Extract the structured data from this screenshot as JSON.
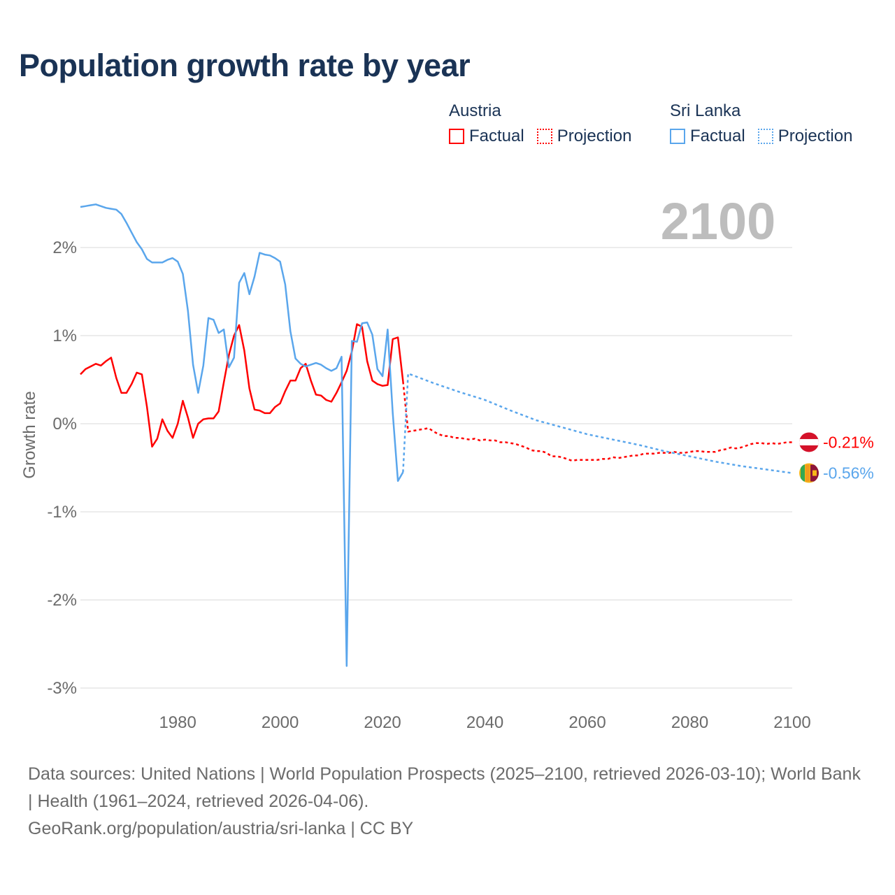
{
  "title": "Population growth rate by year",
  "legend": {
    "groups": [
      {
        "name": "Austria",
        "color": "#ff0000",
        "items": [
          "Factual",
          "Projection"
        ]
      },
      {
        "name": "Sri Lanka",
        "color": "#5aa6ec",
        "items": [
          "Factual",
          "Projection"
        ]
      }
    ]
  },
  "year_label": "2100",
  "footer": {
    "sources": "Data sources: United Nations | World Population Prospects (2025–2100, retrieved 2026-03-10); World Bank | Health (1961–2024, retrieved 2026-04-06).",
    "credit": "GeoRank.org/population/austria/sri-lanka | CC BY"
  },
  "chart_data": {
    "type": "line",
    "title": "Population growth rate by year",
    "ylabel": "Growth rate",
    "xlabel": "",
    "xlim": [
      1961,
      2100
    ],
    "ylim": [
      -3.1,
      2.6
    ],
    "x_ticks": [
      1980,
      2000,
      2020,
      2040,
      2060,
      2080,
      2100
    ],
    "x_tick_labels": [
      "1980",
      "2000",
      "2020",
      "2040",
      "2060",
      "2080",
      "2100"
    ],
    "y_ticks": [
      2,
      1,
      0,
      -1,
      -2,
      -3
    ],
    "y_tick_labels": [
      "2%",
      "1%",
      "0%",
      "-1%",
      "-2%",
      "-3%"
    ],
    "grid": true,
    "series": [
      {
        "name": "Austria Factual",
        "country": "Austria",
        "style": "solid",
        "color": "#ff0000",
        "x_start": 1961,
        "values": [
          0.56,
          0.62,
          0.65,
          0.68,
          0.66,
          0.71,
          0.75,
          0.52,
          0.35,
          0.35,
          0.45,
          0.58,
          0.56,
          0.19,
          -0.26,
          -0.17,
          0.05,
          -0.08,
          -0.16,
          0.0,
          0.26,
          0.07,
          -0.16,
          0.0,
          0.05,
          0.06,
          0.06,
          0.14,
          0.47,
          0.78,
          1.0,
          1.12,
          0.83,
          0.4,
          0.16,
          0.15,
          0.12,
          0.12,
          0.19,
          0.23,
          0.37,
          0.49,
          0.49,
          0.63,
          0.68,
          0.49,
          0.33,
          0.32,
          0.27,
          0.25,
          0.35,
          0.47,
          0.6,
          0.82,
          1.13,
          1.1,
          0.71,
          0.49,
          0.45,
          0.43,
          0.44,
          0.96,
          0.98,
          0.48
        ]
      },
      {
        "name": "Austria Projection",
        "country": "Austria",
        "style": "dotted",
        "color": "#ff0000",
        "x_start": 2024,
        "values": [
          0.48,
          -0.09,
          -0.08,
          -0.07,
          -0.06,
          -0.05,
          -0.09,
          -0.12,
          -0.14,
          -0.14,
          -0.16,
          -0.16,
          -0.17,
          -0.18,
          -0.17,
          -0.19,
          -0.18,
          -0.19,
          -0.19,
          -0.21,
          -0.21,
          -0.22,
          -0.23,
          -0.25,
          -0.27,
          -0.3,
          -0.31,
          -0.31,
          -0.33,
          -0.37,
          -0.37,
          -0.38,
          -0.4,
          -0.42,
          -0.41,
          -0.41,
          -0.41,
          -0.41,
          -0.41,
          -0.4,
          -0.4,
          -0.38,
          -0.39,
          -0.38,
          -0.37,
          -0.36,
          -0.36,
          -0.34,
          -0.34,
          -0.34,
          -0.33,
          -0.33,
          -0.33,
          -0.32,
          -0.33,
          -0.33,
          -0.32,
          -0.31,
          -0.31,
          -0.32,
          -0.32,
          -0.32,
          -0.3,
          -0.29,
          -0.27,
          -0.28,
          -0.27,
          -0.25,
          -0.23,
          -0.22,
          -0.22,
          -0.23,
          -0.22,
          -0.23,
          -0.22,
          -0.21,
          -0.21
        ]
      },
      {
        "name": "Sri Lanka Factual",
        "country": "Sri Lanka",
        "style": "solid",
        "color": "#5aa6ec",
        "x_start": 1961,
        "values": [
          2.46,
          2.47,
          2.48,
          2.49,
          2.47,
          2.45,
          2.44,
          2.43,
          2.38,
          2.28,
          2.17,
          2.06,
          1.98,
          1.87,
          1.83,
          1.83,
          1.83,
          1.86,
          1.88,
          1.84,
          1.7,
          1.28,
          0.67,
          0.35,
          0.66,
          1.2,
          1.18,
          1.03,
          1.07,
          0.64,
          0.75,
          1.6,
          1.71,
          1.47,
          1.67,
          1.94,
          1.92,
          1.91,
          1.88,
          1.84,
          1.58,
          1.05,
          0.74,
          0.68,
          0.65,
          0.67,
          0.69,
          0.67,
          0.63,
          0.6,
          0.63,
          0.76,
          -2.75,
          0.94,
          0.93,
          1.14,
          1.15,
          1.01,
          0.62,
          0.54,
          1.07,
          0.12,
          -0.65,
          -0.55
        ]
      },
      {
        "name": "Sri Lanka Projection",
        "country": "Sri Lanka",
        "style": "dotted",
        "color": "#5aa6ec",
        "x": [
          2024,
          2025,
          2030,
          2035,
          2040,
          2045,
          2050,
          2055,
          2060,
          2065,
          2070,
          2075,
          2080,
          2085,
          2090,
          2095,
          2100
        ],
        "values": [
          -0.55,
          0.57,
          0.46,
          0.36,
          0.27,
          0.15,
          0.04,
          -0.04,
          -0.12,
          -0.18,
          -0.24,
          -0.31,
          -0.37,
          -0.43,
          -0.48,
          -0.52,
          -0.56
        ]
      }
    ],
    "end_labels": [
      {
        "country": "Austria",
        "label": "-0.21%",
        "value": -0.21,
        "color": "#ff0000"
      },
      {
        "country": "Sri Lanka",
        "label": "-0.56%",
        "value": -0.56,
        "color": "#5aa6ec"
      }
    ]
  }
}
